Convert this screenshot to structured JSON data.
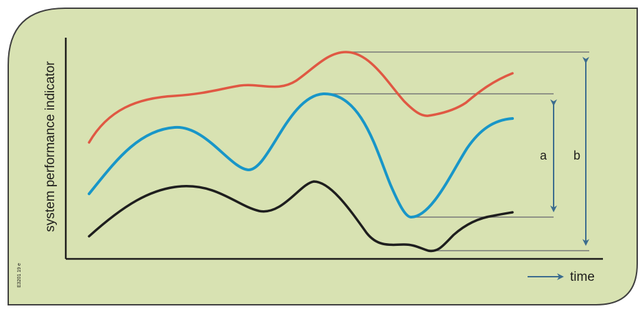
{
  "diagram": {
    "y_axis_label": "system performance indicator",
    "x_axis_label": "time",
    "marker_a": "a",
    "marker_b": "b",
    "side_code": "E3201 19 e",
    "colors": {
      "background_panel": "#d8e2b2",
      "frame": "#3f3f3f",
      "curve_top": "#e05843",
      "curve_middle": "#1896c8",
      "curve_bottom": "#1e1e1e",
      "guide_line": "#777777",
      "arrow": "#3b6c8e"
    },
    "curves": [
      {
        "name": "red-curve"
      },
      {
        "name": "blue-curve"
      },
      {
        "name": "black-curve"
      }
    ]
  }
}
